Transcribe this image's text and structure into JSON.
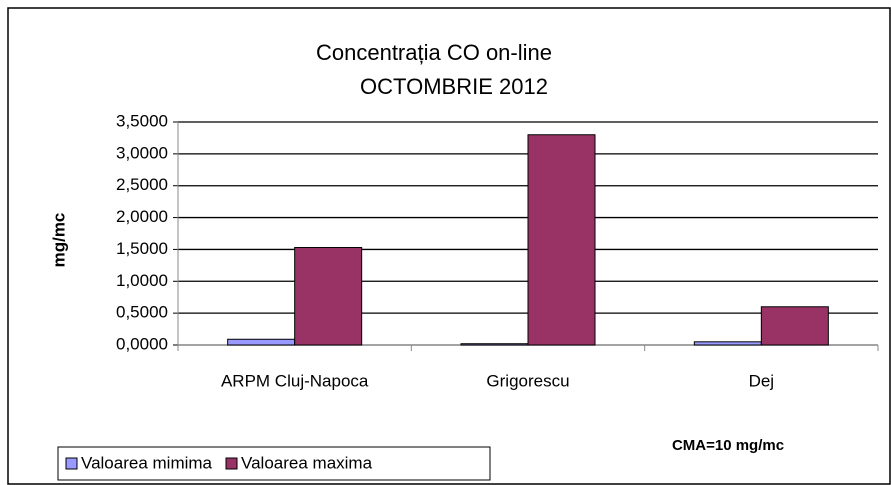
{
  "chart_data": {
    "type": "bar",
    "title": "Concentrația CO on-line",
    "subtitle": "OCTOMBRIE 2012",
    "y_label": "mg/mc",
    "annotation": "CMA=10 mg/mc",
    "categories": [
      "ARPM Cluj-Napoca",
      "Grigorescu",
      "Dej"
    ],
    "series": [
      {
        "name": "Valoarea mimima",
        "color": "#9999ff",
        "values": [
          0.09,
          0.02,
          0.05
        ]
      },
      {
        "name": "Valoarea maxima",
        "color": "#993366",
        "values": [
          1.53,
          3.3,
          0.6
        ]
      }
    ],
    "ylim": [
      0,
      3.5
    ],
    "yticks": [
      {
        "value": 0,
        "label": "0,0000"
      },
      {
        "value": 0.5,
        "label": "0,5000"
      },
      {
        "value": 1,
        "label": "1,0000"
      },
      {
        "value": 1.5,
        "label": "1,5000"
      },
      {
        "value": 2,
        "label": "2,0000"
      },
      {
        "value": 2.5,
        "label": "2,5000"
      },
      {
        "value": 3,
        "label": "3,0000"
      },
      {
        "value": 3.5,
        "label": "3,5000"
      }
    ],
    "grid": true,
    "legend": "bottom-left"
  }
}
